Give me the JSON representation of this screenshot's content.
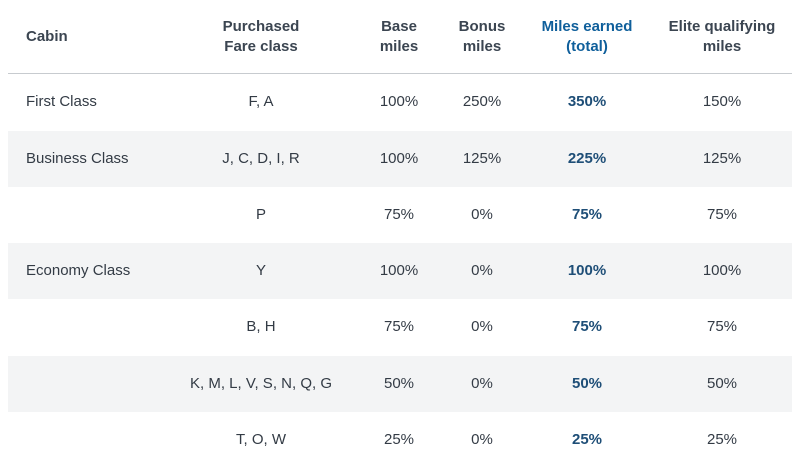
{
  "headers": {
    "cabin": "Cabin",
    "fare_line1": "Purchased",
    "fare_line2": "Fare class",
    "base_line1": "Base",
    "base_line2": "miles",
    "bonus_line1": "Bonus",
    "bonus_line2": "miles",
    "total_line1": "Miles earned",
    "total_line2": "(total)",
    "elite_line1": "Elite qualifying",
    "elite_line2": "miles"
  },
  "rows": [
    {
      "cabin": "First Class",
      "fare": "F, A",
      "base": "100%",
      "bonus": "250%",
      "total": "350%",
      "elite": "150%"
    },
    {
      "cabin": "Business Class",
      "fare": "J, C, D, I, R",
      "base": "100%",
      "bonus": "125%",
      "total": "225%",
      "elite": "125%"
    },
    {
      "cabin": "",
      "fare": "P",
      "base": "75%",
      "bonus": "0%",
      "total": "75%",
      "elite": "75%"
    },
    {
      "cabin": "Economy Class",
      "fare": "Y",
      "base": "100%",
      "bonus": "0%",
      "total": "100%",
      "elite": "100%"
    },
    {
      "cabin": "",
      "fare": "B, H",
      "base": "75%",
      "bonus": "0%",
      "total": "75%",
      "elite": "75%"
    },
    {
      "cabin": "",
      "fare": "K, M, L, V, S, N, Q, G",
      "base": "50%",
      "bonus": "0%",
      "total": "50%",
      "elite": "50%"
    },
    {
      "cabin": "",
      "fare": "T, O, W",
      "base": "25%",
      "bonus": "0%",
      "total": "25%",
      "elite": "25%"
    }
  ]
}
